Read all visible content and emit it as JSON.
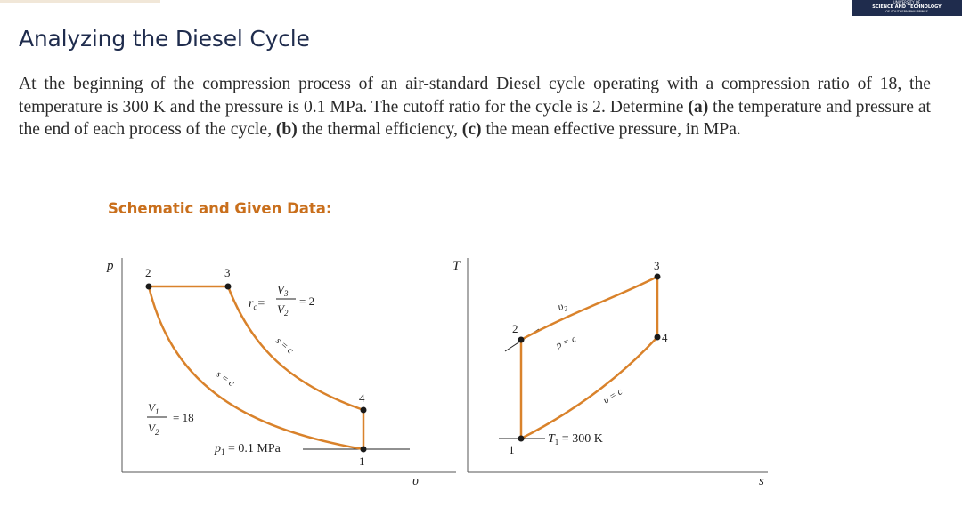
{
  "header": {
    "logo_line1": "UNIVERSITY OF",
    "logo_line2": "SCIENCE AND TECHNOLOGY",
    "logo_line3": "OF SOUTHERN PHILIPPINES"
  },
  "title": "Analyzing the Diesel Cycle",
  "problem": {
    "intro": "At the beginning of the compression process of an air-standard Diesel cycle operating with a compression ratio of 18, the temperature is 300 K and the pressure is 0.1 MPa. The cutoff ratio for the cycle is 2. Determine ",
    "a_label": "(a)",
    "a_text": " the temperature and pressure at the end of each process of the cycle, ",
    "b_label": "(b)",
    "b_text": " the thermal efficiency, ",
    "c_label": "(c)",
    "c_text": " the mean effective pressure, in MPa."
  },
  "schematic_heading": "Schematic and Given Data:",
  "pv_diagram": {
    "axis_y": "p",
    "axis_x": "υ",
    "states": [
      "1",
      "2",
      "3",
      "4"
    ],
    "rc_lhs": "r",
    "rc_sub": "c",
    "rc_num": "V",
    "rc_num_sub": "3",
    "rc_den": "V",
    "rc_den_sub": "2",
    "rc_value": "= 2",
    "cr_num": "V",
    "cr_num_sub": "1",
    "cr_den": "V",
    "cr_den_sub": "2",
    "cr_value": "= 18",
    "isentrope_upper": "s = c",
    "isentrope_lower": "s = c",
    "p1_label": "p",
    "p1_sub": "1",
    "p1_value": " = 0.1 MPa"
  },
  "ts_diagram": {
    "axis_y": "T",
    "axis_x": "s",
    "states": [
      "1",
      "2",
      "3",
      "4"
    ],
    "v2_label": "υ",
    "v2_sub": "2",
    "p_const": "p = c",
    "v_const": "υ = c",
    "t1_label": "T",
    "t1_sub": "1",
    "t1_value": " = 300 K"
  },
  "colors": {
    "title": "#1f2c4d",
    "accent": "#c96f1c",
    "curve": "#d9822b",
    "logo_bg": "#1f2c4d"
  }
}
